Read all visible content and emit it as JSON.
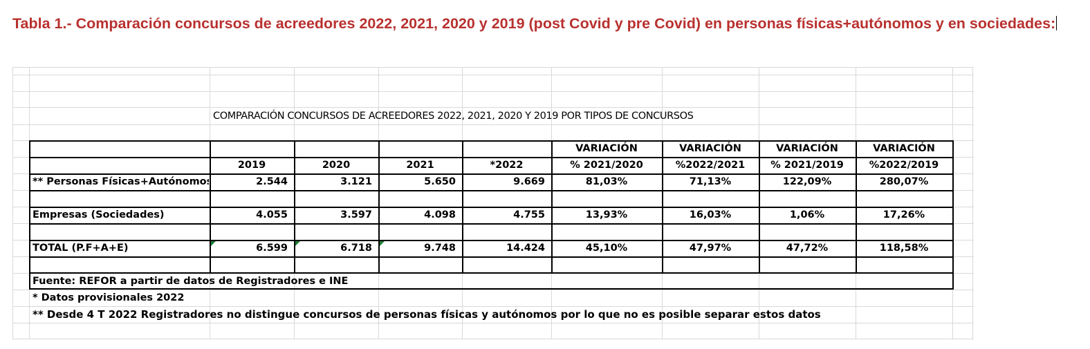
{
  "document": {
    "title": "Tabla 1.- Comparación concursos de acreedores 2022, 2021, 2020 y 2019 (post Covid y pre Covid) en personas físicas+autónomos y en sociedades:"
  },
  "table": {
    "title": "COMPARACIÓN CONCURSOS DE ACREEDORES 2022, 2021, 2020 Y 2019 POR TIPOS DE CONCURSOS",
    "headers_top": [
      "VARIACIÓN",
      "VARIACIÓN",
      "VARIACIÓN",
      "VARIACIÓN"
    ],
    "headers": [
      "2019",
      "2020",
      "2021",
      "*2022",
      "% 2021/2020",
      "%2022/2021",
      "% 2021/2019",
      "%2022/2019"
    ],
    "rows": [
      {
        "label": "** Personas Físicas+Autónomos",
        "values": [
          "2.544",
          "3.121",
          "5.650",
          "9.669",
          "81,03%",
          "71,13%",
          "122,09%",
          "280,07%"
        ]
      },
      {
        "label": "Empresas (Sociedades)",
        "values": [
          "4.055",
          "3.597",
          "4.098",
          "4.755",
          "13,93%",
          "16,03%",
          "1,06%",
          "17,26%"
        ]
      },
      {
        "label": "TOTAL (P.F+A+E)",
        "values": [
          "6.599",
          "6.718",
          "9.748",
          "14.424",
          "45,10%",
          "47,97%",
          "47,72%",
          "118,58%"
        ]
      }
    ],
    "source": "Fuente: REFOR a partir de datos de Registradores e INE",
    "notes": [
      "* Datos provisionales 2022",
      "** Desde 4 T 2022 Registradores no distingue concursos de personas físicas y autónomos por lo que no es posible separar estos datos"
    ]
  }
}
